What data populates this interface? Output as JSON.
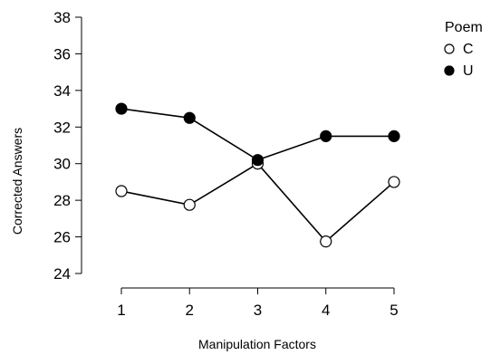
{
  "chart_data": {
    "type": "line",
    "title": "",
    "xlabel": "Manipulation Factors",
    "ylabel": "Corrected Answers",
    "x": [
      1,
      2,
      3,
      4,
      5
    ],
    "xlim": [
      1,
      5
    ],
    "ylim": [
      24,
      38
    ],
    "yticks": [
      24,
      26,
      28,
      30,
      32,
      34,
      36,
      38
    ],
    "grid": false,
    "legend": {
      "title": "Poem",
      "placement": "top-right"
    },
    "series": [
      {
        "name": "C",
        "marker": "open-circle",
        "color": "#000000",
        "values": [
          28.5,
          27.75,
          30.0,
          25.75,
          29.0
        ]
      },
      {
        "name": "U",
        "marker": "filled-circle",
        "color": "#000000",
        "values": [
          33.0,
          32.5,
          30.2,
          31.5,
          31.5
        ]
      }
    ]
  }
}
